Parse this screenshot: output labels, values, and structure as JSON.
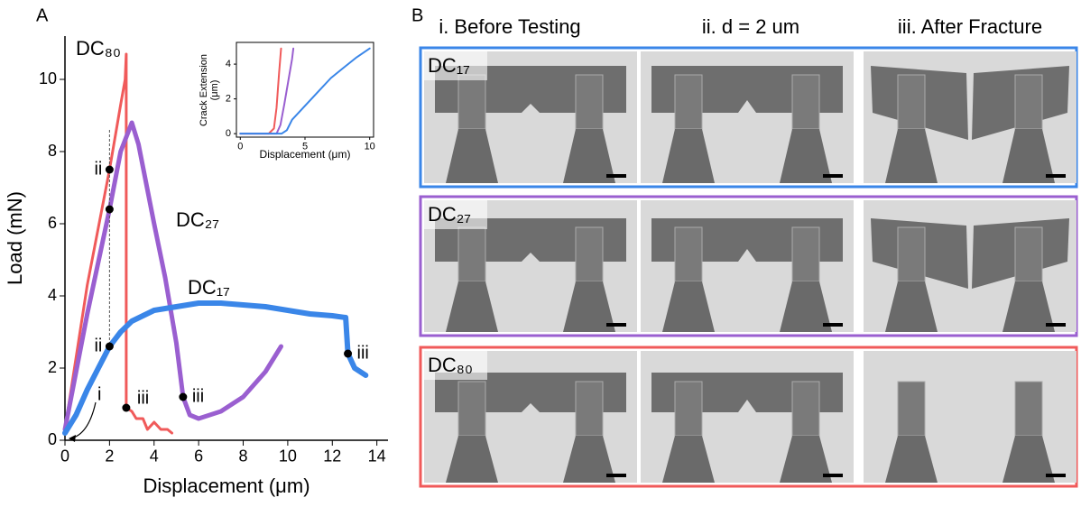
{
  "panel_labels": [
    "A",
    "B"
  ],
  "chart_data": [
    {
      "type": "line",
      "xlabel": "Displacement (μm)",
      "ylabel": "Load (mN)",
      "xlim": [
        0,
        14.5
      ],
      "ylim": [
        0,
        11.2
      ],
      "xticks": [
        0,
        2,
        4,
        6,
        8,
        10,
        12,
        14
      ],
      "yticks": [
        0,
        2,
        4,
        6,
        8,
        10
      ],
      "series": [
        {
          "name": "DC₈₀",
          "color": "#f05a5a",
          "x": [
            0,
            1,
            2,
            2.5,
            2.7,
            2.75,
            2.75,
            3,
            3.2,
            3.5,
            3.7,
            4,
            4.3,
            4.6,
            4.8
          ],
          "values": [
            0.3,
            4.3,
            7.5,
            9.3,
            10,
            10.7,
            0.9,
            0.8,
            0.6,
            0.6,
            0.3,
            0.5,
            0.3,
            0.3,
            0.2
          ]
        },
        {
          "name": "DC₂₇",
          "color": "#9a5fd0",
          "x": [
            0,
            1,
            2,
            2.5,
            3,
            3.3,
            4,
            4.5,
            5,
            5.3,
            5.6,
            6,
            7,
            8,
            9,
            9.7
          ],
          "values": [
            0.3,
            3.5,
            6.4,
            8,
            8.8,
            8.2,
            6,
            4.5,
            2.7,
            1.2,
            0.7,
            0.6,
            0.8,
            1.2,
            1.9,
            2.6
          ]
        },
        {
          "name": "DC₁₇",
          "color": "#3a86e8",
          "x": [
            0,
            0.5,
            1,
            1.5,
            2,
            2.5,
            3,
            4,
            5,
            6,
            7,
            8,
            9,
            10,
            11,
            12,
            12.6,
            12.7,
            13,
            13.5
          ],
          "values": [
            0.2,
            0.7,
            1.4,
            2,
            2.6,
            3,
            3.3,
            3.6,
            3.7,
            3.8,
            3.8,
            3.75,
            3.7,
            3.6,
            3.5,
            3.45,
            3.4,
            2.4,
            2,
            1.8
          ]
        }
      ],
      "markers": [
        {
          "x": 2,
          "y": 7.5,
          "label": "ii"
        },
        {
          "x": 2,
          "y": 6.4
        },
        {
          "x": 2,
          "y": 2.6,
          "label": "ii"
        },
        {
          "x": 2.75,
          "y": 0.9,
          "label": "iii"
        },
        {
          "x": 5.3,
          "y": 1.2,
          "label": "iii"
        },
        {
          "x": 12.7,
          "y": 2.4,
          "label": "iii"
        }
      ],
      "annotations": [
        "i"
      ],
      "reference_lines": [
        2
      ]
    },
    {
      "type": "line",
      "xlabel": "Displacement (μm)",
      "ylabel": [
        "Crack Extension",
        "(μm)"
      ],
      "xlim": [
        -0.3,
        10.3
      ],
      "ylim": [
        -0.2,
        5.25
      ],
      "xticks": [
        0,
        5,
        10
      ],
      "yticks": [
        0,
        2,
        4
      ],
      "series": [
        {
          "color": "#f05a5a",
          "x": [
            0,
            2.2,
            2.6,
            2.8,
            3,
            3.15
          ],
          "values": [
            0,
            0,
            0.3,
            1.5,
            3.5,
            4.9
          ]
        },
        {
          "color": "#9a5fd0",
          "x": [
            0,
            2.8,
            3.1,
            3.4,
            3.7,
            4,
            4.1
          ],
          "values": [
            0,
            0,
            0.5,
            1.7,
            3,
            4.3,
            4.9
          ]
        },
        {
          "color": "#3a86e8",
          "x": [
            0,
            3.2,
            3.6,
            4,
            5,
            6,
            7,
            8,
            9,
            10
          ],
          "values": [
            0,
            0,
            0.2,
            0.8,
            1.6,
            2.4,
            3.2,
            3.8,
            4.4,
            4.9
          ]
        }
      ]
    }
  ],
  "image_grid": {
    "columns": [
      "i. Before Testing",
      "ii. d = 2 um",
      "iii. After Fracture"
    ],
    "rows": [
      {
        "label": "DC₁₇",
        "color": "#3a86e8"
      },
      {
        "label": "DC₂₇",
        "color": "#9a5fd0"
      },
      {
        "label": "DC₈₀",
        "color": "#f05a5a"
      }
    ]
  }
}
